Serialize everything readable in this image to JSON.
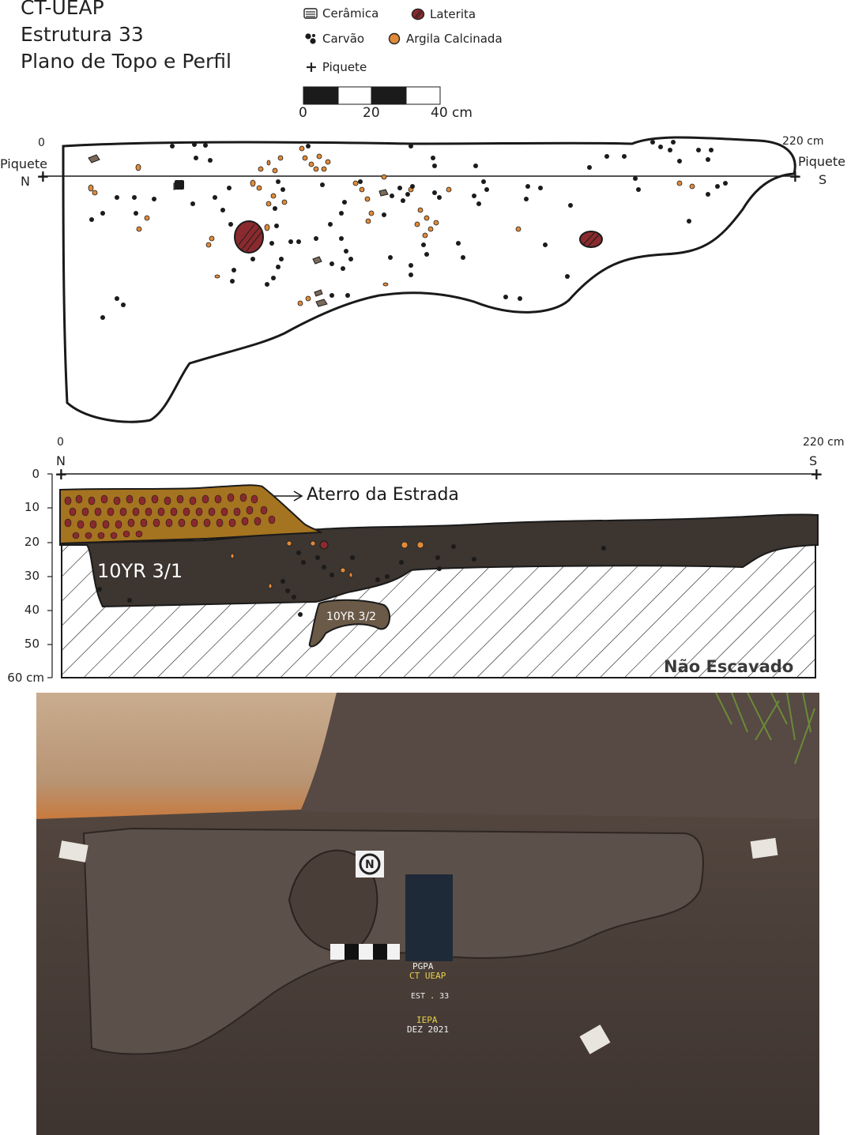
{
  "header": {
    "line1": "CT-UEAP",
    "line2": "Estrutura 33",
    "line3": "Plano de Topo e Perfil"
  },
  "legend": {
    "ceramica": "Cerâmica",
    "laterita": "Laterita",
    "carvao": "Carvão",
    "argila": "Argila Calcinada",
    "piquete": "Piquete"
  },
  "scale_bar": {
    "label_0": "0",
    "label_20": "20",
    "label_40": "40 cm"
  },
  "plan": {
    "start": "0",
    "end": "220 cm",
    "left_stake": "Piquete",
    "left_dir": "N",
    "right_stake": "Piquete",
    "right_dir": "S"
  },
  "profile": {
    "start": "0",
    "end": "220 cm",
    "left_dir": "N",
    "right_dir": "S",
    "depths": [
      "0",
      "10",
      "20",
      "30",
      "40",
      "50",
      "60 cm"
    ],
    "aterro": "Aterro da Estrada",
    "layer_main": "10YR 3/1",
    "layer_pit": "10YR 3/2",
    "unexcavated": "Não Escavado"
  },
  "photo": {
    "board_line1": "PGPA",
    "board_line2": "CT UEAP",
    "board_line3": "EST . 33",
    "board_line4": "IEPA",
    "board_line5": "DEZ 2021"
  },
  "colors": {
    "charcoal": "#1b1b1b",
    "laterite": "#8a2a2e",
    "burnt_clay": "#e08a3a",
    "ceramic": "#7a6a5a",
    "aterro_fill": "#a57420",
    "soil_dark": "#3c3530",
    "soil_pit": "#6b5a48"
  }
}
